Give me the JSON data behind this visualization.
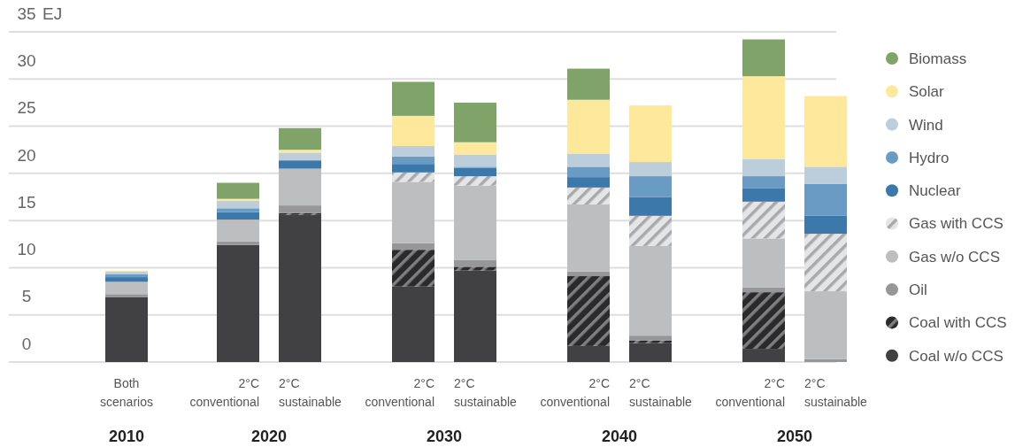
{
  "chart_data": {
    "type": "bar",
    "stacked": true,
    "ylabel": "EJ",
    "categories": [
      "Both\nscenarios",
      "2°C\nconventional",
      "2°C\nsustainable",
      "2°C\nconventional",
      "2°C\nsustainable",
      "2°C\nconventional",
      "2°C\nsustainable",
      "2°C\nconventional",
      "2°C\nsustainable"
    ],
    "annotations": [
      "2010",
      "2020",
      "2030",
      "2040",
      "2050"
    ],
    "series": [
      {
        "name": "Coal w/o CCS",
        "color": "#414143",
        "values": [
          6.9,
          12.4,
          15.6,
          8.0,
          9.7,
          1.7,
          2.0,
          1.4,
          0
        ]
      },
      {
        "name": "Coal with CCS",
        "color": "#2a2a2c",
        "values": [
          0,
          0,
          0.2,
          3.9,
          0.4,
          7.4,
          0.3,
          6.0,
          0
        ]
      },
      {
        "name": "Oil",
        "color": "#97979a",
        "values": [
          0.3,
          0.4,
          0.8,
          0.7,
          0.7,
          0.5,
          0.5,
          0.5,
          0.3
        ]
      },
      {
        "name": "Gas w/o CCS",
        "color": "#bdbec0",
        "values": [
          1.3,
          2.3,
          3.9,
          6.5,
          7.9,
          7.1,
          9.5,
          5.2,
          7.2
        ]
      },
      {
        "name": "Gas with CCS",
        "color": "#e4e5e6",
        "values": [
          0,
          0,
          0,
          1.0,
          1.0,
          1.8,
          3.2,
          3.9,
          6.1
        ]
      },
      {
        "name": "Nuclear",
        "color": "#3d78aa",
        "values": [
          0.5,
          0.8,
          0.8,
          0.9,
          0.9,
          1.1,
          2.0,
          1.4,
          1.9
        ]
      },
      {
        "name": "Hydro",
        "color": "#6a9bc4",
        "values": [
          0.3,
          0.4,
          0.1,
          0.8,
          0.1,
          1.1,
          2.2,
          1.3,
          3.4
        ]
      },
      {
        "name": "Wind",
        "color": "#bccddb",
        "values": [
          0.3,
          0.8,
          0.8,
          1.1,
          1.3,
          1.4,
          1.5,
          1.8,
          1.8
        ]
      },
      {
        "name": "Solar",
        "color": "#fde89c",
        "values": [
          0.1,
          0.2,
          0.3,
          3.2,
          1.3,
          5.7,
          6.0,
          8.8,
          7.5
        ]
      },
      {
        "name": "Biomass",
        "color": "#80a369",
        "values": [
          0,
          1.7,
          2.3,
          3.6,
          4.2,
          3.3,
          0,
          3.9,
          0
        ]
      }
    ],
    "ylim": [
      0,
      35
    ],
    "yticks": [
      0,
      5,
      10,
      15,
      20,
      25,
      30,
      35
    ],
    "grid": "y",
    "legend": "right",
    "marker": "circle"
  }
}
